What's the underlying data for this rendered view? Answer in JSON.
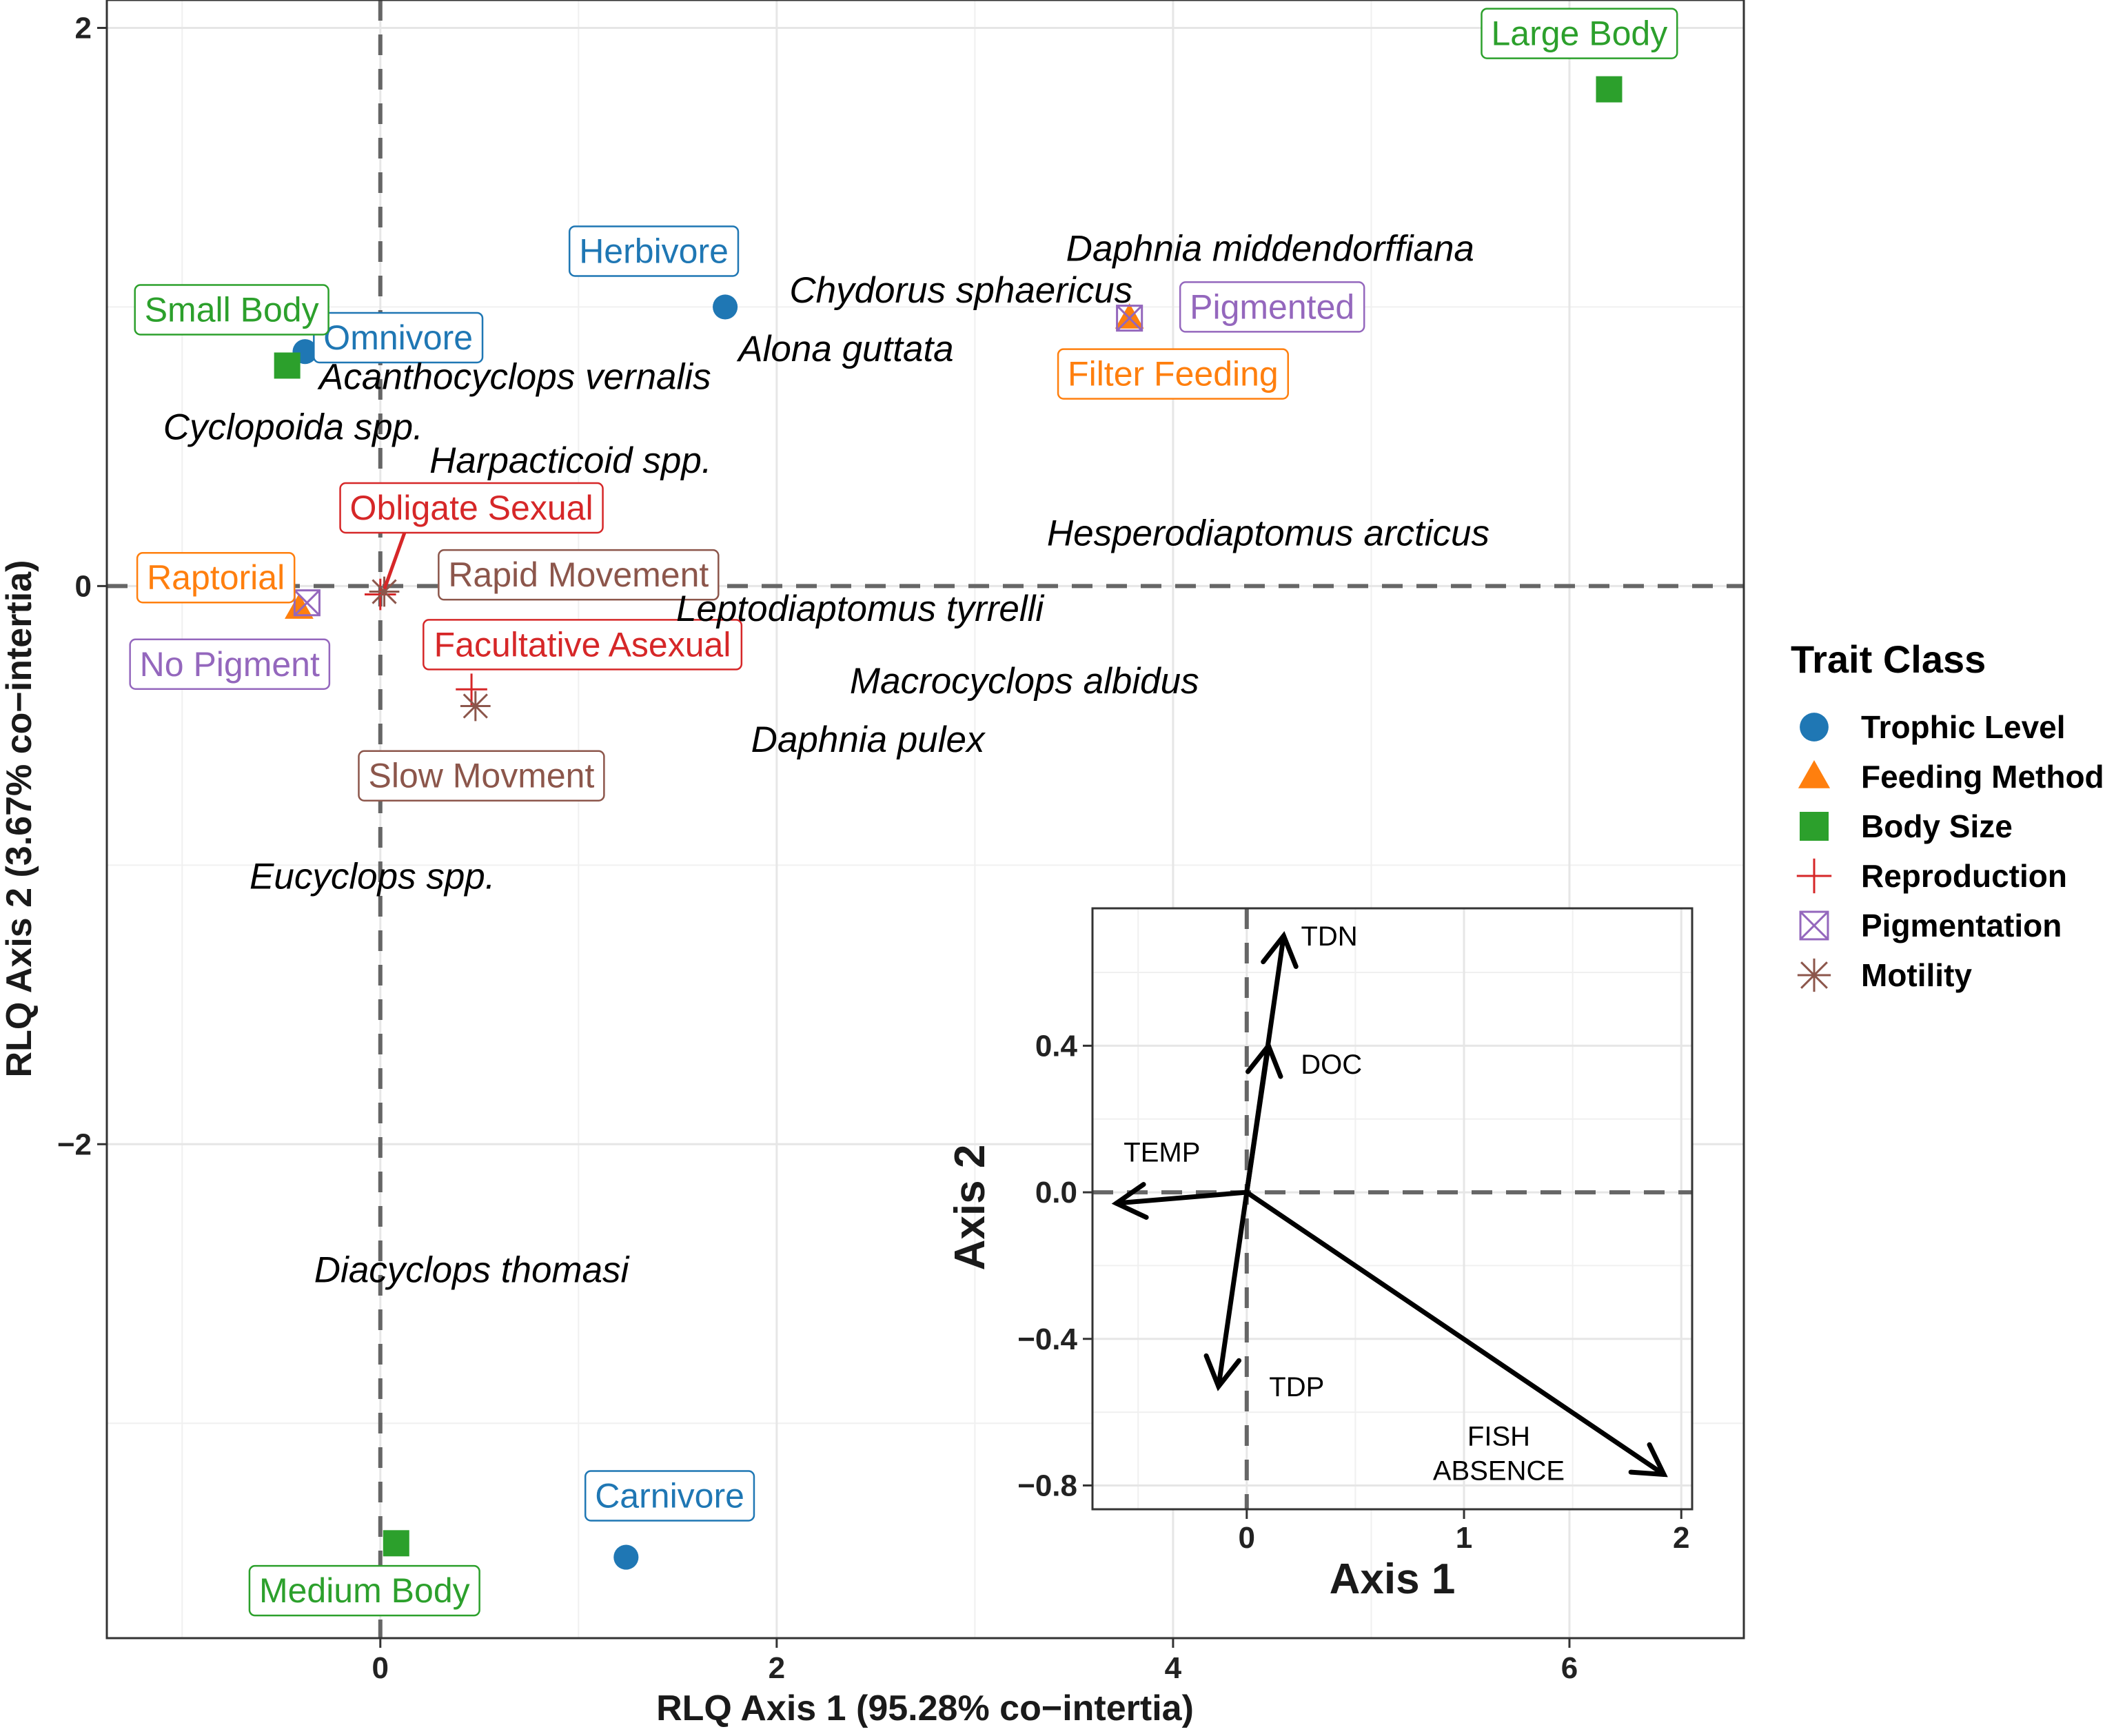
{
  "colors": {
    "trophic": "#1f77b4",
    "feeding": "#ff7f0e",
    "body": "#2ca02c",
    "reproduction": "#d62728",
    "pigmentation": "#9467bd",
    "motility": "#8c564b"
  },
  "chart_data": [
    {
      "type": "scatter",
      "xlabel": "RLQ Axis 1 (95.28% co−intertia)",
      "ylabel": "RLQ Axis 2 (3.67% co−intertia)",
      "xlim": [
        -1.38,
        6.88
      ],
      "ylim": [
        -3.77,
        2.1
      ],
      "xticks": [
        {
          "value": 0,
          "label": "0"
        },
        {
          "value": 2,
          "label": "2"
        },
        {
          "value": 4,
          "label": "4"
        },
        {
          "value": 6,
          "label": "6"
        }
      ],
      "yticks": [
        {
          "value": 2,
          "label": "2"
        },
        {
          "value": 0,
          "label": "0"
        },
        {
          "value": -2,
          "label": "−2"
        }
      ],
      "grid": true,
      "reference_lines": {
        "x": 0,
        "y": 0,
        "style": "dashed"
      },
      "legend": {
        "title": "Trait Class",
        "position": "right",
        "entries": [
          {
            "label": "Trophic Level",
            "shape": "circle",
            "color": "#1f77b4"
          },
          {
            "label": "Feeding Method",
            "shape": "triangle",
            "color": "#ff7f0e"
          },
          {
            "label": "Body Size",
            "shape": "square",
            "color": "#2ca02c"
          },
          {
            "label": "Reproduction",
            "shape": "plus",
            "color": "#d62728"
          },
          {
            "label": "Pigmentation",
            "shape": "boxcross",
            "color": "#9467bd"
          },
          {
            "label": "Motility",
            "shape": "asterisk",
            "color": "#8c564b"
          }
        ]
      },
      "trait_points": [
        {
          "class": "Trophic Level",
          "label": "Herbivore",
          "x": 1.74,
          "y": 1.0,
          "label_x": 1.38,
          "label_y": 1.2
        },
        {
          "class": "Trophic Level",
          "label": "Omnivore",
          "x": -0.38,
          "y": 0.84,
          "label_x": 0.09,
          "label_y": 0.89
        },
        {
          "class": "Trophic Level",
          "label": "Carnivore",
          "x": 1.24,
          "y": -3.48,
          "label_x": 1.46,
          "label_y": -3.26
        },
        {
          "class": "Feeding Method",
          "label": "Filter Feeding",
          "x": 3.78,
          "y": 0.96,
          "label_x": 4.0,
          "label_y": 0.76
        },
        {
          "class": "Feeding Method",
          "label": "Raptorial",
          "x": -0.41,
          "y": -0.08,
          "label_x": -0.83,
          "label_y": 0.03
        },
        {
          "class": "Body Size",
          "label": "Large Body",
          "x": 6.2,
          "y": 1.78,
          "label_x": 6.05,
          "label_y": 1.98
        },
        {
          "class": "Body Size",
          "label": "Small Body",
          "x": -0.47,
          "y": 0.79,
          "label_x": -0.75,
          "label_y": 0.99
        },
        {
          "class": "Body Size",
          "label": "Medium Body",
          "x": 0.08,
          "y": -3.43,
          "label_x": -0.08,
          "label_y": -3.6
        },
        {
          "class": "Reproduction",
          "label": "Obligate Sexual",
          "x": 0.0,
          "y": -0.03,
          "label_x": 0.46,
          "label_y": 0.28,
          "leader": true
        },
        {
          "class": "Reproduction",
          "label": "Facultative Asexual",
          "x": 0.46,
          "y": -0.37,
          "label_x": 1.02,
          "label_y": -0.21
        },
        {
          "class": "Pigmentation",
          "label": "Pigmented",
          "x": 3.78,
          "y": 0.96,
          "label_x": 4.5,
          "label_y": 1.0
        },
        {
          "class": "Pigmentation",
          "label": "No Pigment",
          "x": -0.37,
          "y": -0.06,
          "label_x": -0.76,
          "label_y": -0.28
        },
        {
          "class": "Motility",
          "label": "Rapid Movement",
          "x": 0.02,
          "y": -0.02,
          "label_x": 1.0,
          "label_y": 0.04
        },
        {
          "class": "Motility",
          "label": "Slow Movment",
          "x": 0.48,
          "y": -0.43,
          "label_x": 0.51,
          "label_y": -0.68
        }
      ],
      "species": [
        {
          "label": "Daphnia middendorffiana",
          "x": 4.49,
          "y": 1.21
        },
        {
          "label": "Chydorus sphaericus",
          "x": 2.93,
          "y": 1.06
        },
        {
          "label": "Alona guttata",
          "x": 2.35,
          "y": 0.85
        },
        {
          "label": "Acanthocyclops vernalis",
          "x": 0.68,
          "y": 0.75
        },
        {
          "label": "Cyclopoida spp.",
          "x": -0.44,
          "y": 0.57
        },
        {
          "label": "Harpacticoid spp.",
          "x": 0.96,
          "y": 0.45
        },
        {
          "label": "Hesperodiaptomus arcticus",
          "x": 4.48,
          "y": 0.19
        },
        {
          "label": "Leptodiaptomus tyrrelli",
          "x": 2.42,
          "y": -0.08
        },
        {
          "label": "Macrocyclops albidus",
          "x": 3.25,
          "y": -0.34
        },
        {
          "label": "Daphnia pulex",
          "x": 2.46,
          "y": -0.55
        },
        {
          "label": "Eucyclops spp.",
          "x": -0.04,
          "y": -1.04
        },
        {
          "label": "Diacyclops thomasi",
          "x": 0.46,
          "y": -2.45
        }
      ]
    },
    {
      "type": "vector",
      "xlabel": "Axis 1",
      "ylabel": "Axis 2",
      "xlim": [
        -0.71,
        2.05
      ],
      "ylim": [
        -0.865,
        0.775
      ],
      "xticks": [
        {
          "value": 0,
          "label": "0"
        },
        {
          "value": 1,
          "label": "1"
        },
        {
          "value": 2,
          "label": "2"
        }
      ],
      "yticks": [
        {
          "value": 0.4,
          "label": "0.4"
        },
        {
          "value": 0.0,
          "label": "0.0"
        },
        {
          "value": -0.4,
          "label": "−0.4"
        },
        {
          "value": -0.8,
          "label": "−0.8"
        }
      ],
      "grid": true,
      "reference_lines": {
        "x": 0,
        "y": 0,
        "style": "dashed"
      },
      "vectors": [
        {
          "label": "TDN",
          "x": 0.17,
          "y": 0.7
        },
        {
          "label": "DOC",
          "x": 0.1,
          "y": 0.4
        },
        {
          "label": "TEMP",
          "x": -0.6,
          "y": -0.03
        },
        {
          "label": "TDP",
          "x": -0.13,
          "y": -0.53
        },
        {
          "label": "FISH\nABSENCE",
          "x": 1.92,
          "y": -0.77
        }
      ],
      "vector_labels": [
        {
          "label": "TDN",
          "x": 0.38,
          "y": 0.7
        },
        {
          "label": "DOC",
          "x": 0.39,
          "y": 0.35
        },
        {
          "label": "TEMP",
          "x": -0.39,
          "y": 0.11
        },
        {
          "label": "TDP",
          "x": 0.23,
          "y": -0.53
        },
        {
          "label": "FISH\nABSENCE",
          "x": 1.16,
          "y": -0.71
        }
      ]
    }
  ]
}
